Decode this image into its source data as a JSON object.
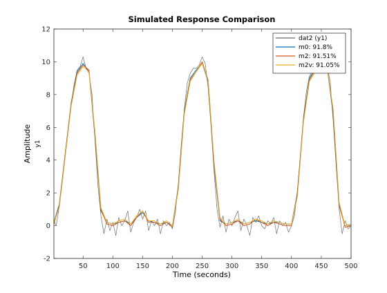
{
  "chart_data": {
    "type": "line",
    "title": "Simulated Response Comparison",
    "xlabel": "Time (seconds)",
    "ylabel": "Amplitude",
    "ylabel_sub": "y1",
    "xlim": [
      1,
      500
    ],
    "ylim": [
      -2,
      12
    ],
    "xticks": [
      50,
      100,
      150,
      200,
      250,
      300,
      350,
      400,
      450,
      500
    ],
    "yticks": [
      -2,
      0,
      2,
      4,
      6,
      8,
      10,
      12
    ],
    "grid": false,
    "legend_position": "top-right",
    "legend": [
      {
        "label": "dat2 (y1)",
        "color": "#6e6e6e"
      },
      {
        "label": "m0: 91.8%",
        "color": "#0072bd"
      },
      {
        "label": "m2: 91.51%",
        "color": "#d95319"
      },
      {
        "label": "m2v: 91.05%",
        "color": "#edb120"
      }
    ],
    "series": [
      {
        "name": "dat2 (y1)",
        "color": "#6e6e6e",
        "x": [
          1,
          5,
          10,
          15,
          20,
          25,
          30,
          35,
          40,
          45,
          50,
          55,
          60,
          65,
          70,
          75,
          80,
          85,
          90,
          95,
          100,
          105,
          110,
          115,
          120,
          125,
          130,
          135,
          140,
          145,
          150,
          155,
          160,
          165,
          170,
          175,
          180,
          185,
          190,
          195,
          200,
          205,
          210,
          215,
          220,
          225,
          230,
          235,
          240,
          245,
          250,
          255,
          260,
          265,
          270,
          275,
          280,
          285,
          290,
          295,
          300,
          305,
          310,
          315,
          320,
          325,
          330,
          335,
          340,
          345,
          350,
          355,
          360,
          365,
          370,
          375,
          380,
          385,
          390,
          395,
          400,
          405,
          410,
          415,
          420,
          425,
          430,
          435,
          440,
          445,
          450,
          455,
          460,
          465,
          470,
          475,
          480,
          485,
          490,
          495,
          500
        ],
        "values": [
          0.3,
          0.0,
          1.2,
          2.6,
          4.3,
          5.9,
          7.4,
          8.6,
          9.5,
          9.7,
          10.3,
          9.6,
          9.3,
          8.0,
          5.2,
          2.4,
          0.6,
          -0.5,
          0.4,
          -0.3,
          0.2,
          -0.6,
          0.5,
          0.0,
          0.3,
          0.9,
          -0.4,
          0.2,
          0.5,
          1.0,
          0.4,
          0.9,
          -0.3,
          0.3,
          0.0,
          0.4,
          -0.5,
          0.3,
          0.0,
          0.2,
          -0.2,
          0.8,
          2.6,
          5.0,
          7.1,
          8.7,
          9.3,
          9.6,
          9.6,
          9.8,
          10.3,
          9.9,
          8.4,
          6.0,
          3.3,
          1.0,
          -0.1,
          0.6,
          -0.4,
          0.4,
          0.0,
          0.5,
          0.9,
          -0.3,
          0.4,
          0.0,
          -0.6,
          0.5,
          0.2,
          0.6,
          0.0,
          -0.2,
          0.3,
          0.1,
          0.5,
          -0.5,
          0.3,
          0.0,
          0.2,
          -0.4,
          0.0,
          0.6,
          2.2,
          4.4,
          6.6,
          8.2,
          9.1,
          9.5,
          9.9,
          10.0,
          10.1,
          9.8,
          9.7,
          8.8,
          6.4,
          3.6,
          1.0,
          -0.5,
          0.3,
          -0.2,
          0.0
        ]
      },
      {
        "name": "m0: 91.8%",
        "color": "#0072bd",
        "x": [
          1,
          10,
          20,
          30,
          40,
          50,
          60,
          70,
          80,
          90,
          100,
          110,
          120,
          130,
          140,
          150,
          160,
          170,
          180,
          190,
          200,
          210,
          220,
          230,
          240,
          250,
          260,
          270,
          280,
          290,
          300,
          310,
          320,
          330,
          340,
          350,
          360,
          370,
          380,
          390,
          400,
          410,
          420,
          430,
          440,
          450,
          460,
          470,
          480,
          490,
          500
        ],
        "values": [
          0.2,
          1.3,
          4.4,
          7.5,
          9.4,
          9.9,
          9.4,
          5.4,
          0.9,
          0.2,
          0.1,
          0.2,
          0.3,
          0.1,
          0.5,
          0.8,
          0.3,
          0.2,
          0.1,
          0.2,
          0.0,
          2.4,
          7.0,
          9.0,
          9.5,
          9.9,
          8.8,
          3.6,
          0.3,
          0.1,
          0.2,
          0.3,
          0.1,
          0.2,
          0.3,
          0.2,
          0.1,
          0.2,
          0.2,
          0.1,
          0.1,
          2.0,
          6.5,
          9.0,
          9.6,
          9.8,
          9.6,
          6.8,
          1.2,
          0.0,
          0.1
        ]
      },
      {
        "name": "m2: 91.51%",
        "color": "#d95319",
        "x": [
          1,
          10,
          20,
          30,
          40,
          50,
          60,
          70,
          80,
          90,
          100,
          110,
          120,
          130,
          140,
          150,
          160,
          170,
          180,
          190,
          200,
          210,
          220,
          230,
          240,
          250,
          260,
          270,
          280,
          290,
          300,
          310,
          320,
          330,
          340,
          350,
          360,
          370,
          380,
          390,
          400,
          410,
          420,
          430,
          440,
          450,
          460,
          470,
          480,
          490,
          500
        ],
        "values": [
          0.1,
          1.2,
          4.3,
          7.4,
          9.3,
          9.8,
          9.5,
          5.6,
          1.0,
          0.1,
          0.0,
          0.2,
          0.3,
          0.0,
          0.5,
          0.9,
          0.2,
          0.2,
          0.0,
          0.2,
          -0.1,
          2.3,
          6.9,
          8.9,
          9.4,
          10.0,
          8.9,
          3.8,
          0.4,
          0.0,
          0.1,
          0.3,
          0.0,
          0.1,
          0.4,
          0.2,
          0.0,
          0.2,
          0.1,
          0.0,
          0.0,
          1.9,
          6.4,
          8.9,
          9.5,
          9.8,
          9.7,
          7.0,
          1.3,
          -0.1,
          0.0
        ]
      },
      {
        "name": "m2v: 91.05%",
        "color": "#edb120",
        "x": [
          1,
          10,
          20,
          30,
          40,
          50,
          60,
          70,
          80,
          90,
          100,
          110,
          120,
          130,
          140,
          150,
          160,
          170,
          180,
          190,
          200,
          210,
          220,
          230,
          240,
          250,
          260,
          270,
          280,
          290,
          300,
          310,
          320,
          330,
          340,
          350,
          360,
          370,
          380,
          390,
          400,
          410,
          420,
          430,
          440,
          450,
          460,
          470,
          480,
          490,
          500
        ],
        "values": [
          0.2,
          1.1,
          4.2,
          7.3,
          9.2,
          9.7,
          9.4,
          5.7,
          1.1,
          0.2,
          0.1,
          0.3,
          0.4,
          0.1,
          0.6,
          0.9,
          0.3,
          0.3,
          0.1,
          0.3,
          0.0,
          2.2,
          6.8,
          8.8,
          9.4,
          9.9,
          8.9,
          3.9,
          0.5,
          0.1,
          0.2,
          0.4,
          0.1,
          0.2,
          0.4,
          0.3,
          0.1,
          0.3,
          0.2,
          0.1,
          0.1,
          1.8,
          6.3,
          8.8,
          9.4,
          9.7,
          9.6,
          7.1,
          1.4,
          0.0,
          0.1
        ]
      }
    ]
  }
}
